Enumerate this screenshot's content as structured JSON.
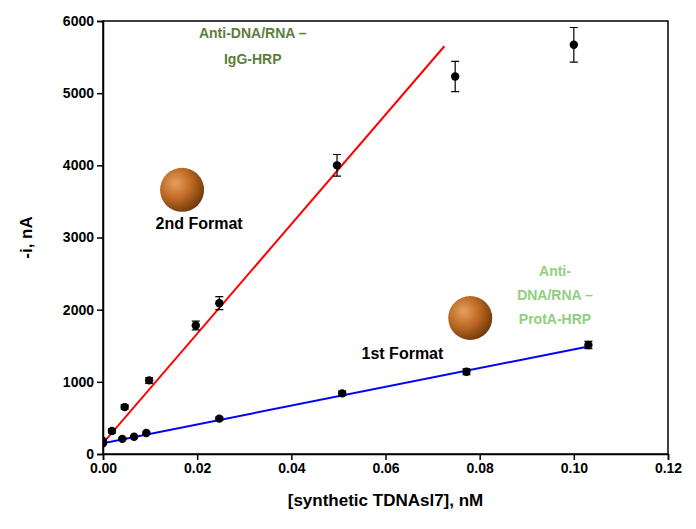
{
  "chart_data": {
    "type": "scatter",
    "x_label": "[synthetic TDNAsl7], nM",
    "y_label": "-i, nA",
    "xlim": [
      0,
      0.12
    ],
    "ylim": [
      0,
      6000
    ],
    "xticks": [
      {
        "value": 0,
        "label": "0.00"
      },
      {
        "value": 0.02,
        "label": "0.02"
      },
      {
        "value": 0.04,
        "label": "0.04"
      },
      {
        "value": 0.06,
        "label": "0.06"
      },
      {
        "value": 0.08,
        "label": "0.08"
      },
      {
        "value": 0.1,
        "label": "0.10"
      },
      {
        "value": 0.12,
        "label": "0.12"
      }
    ],
    "yticks": [
      0,
      1000,
      2000,
      3000,
      4000,
      5000,
      6000
    ],
    "grid": false,
    "series": [
      {
        "type": "scatter",
        "color": "#000000",
        "marker": "circle",
        "x": [
          0,
          0.0019,
          0.0046,
          0.0098,
          0.0197,
          0.0247,
          0.0497,
          0.0748,
          0.1
        ],
        "values": [
          180,
          320,
          650,
          1020,
          1780,
          2090,
          4000,
          5230,
          5670
        ],
        "errors": [
          20,
          30,
          30,
          40,
          60,
          90,
          150,
          210,
          240
        ]
      },
      {
        "type": "line",
        "color": "#ff0000",
        "line_style": "solid",
        "x": [
          0,
          0.0725
        ],
        "values": [
          150,
          5650
        ]
      },
      {
        "type": "scatter",
        "color": "#000000",
        "marker": "circle",
        "x": [
          0,
          0.0041,
          0.0066,
          0.0092,
          0.0247,
          0.0508,
          0.0772,
          0.1031
        ],
        "values": [
          150,
          210,
          240,
          290,
          490,
          840,
          1140,
          1510
        ],
        "errors": [
          10,
          10,
          10,
          15,
          20,
          30,
          40,
          50
        ]
      },
      {
        "type": "line",
        "color": "#0000ff",
        "line_style": "solid",
        "x": [
          0,
          0.1031
        ],
        "values": [
          150,
          1490
        ]
      }
    ],
    "annotations": [
      {
        "lines": [
          "2nd Format"
        ],
        "color": "#000000"
      },
      {
        "lines": [
          "Anti-DNA/RNA –",
          "IgG-HRP"
        ],
        "color": "#5b7f3a"
      },
      {
        "lines": [
          "1st Format"
        ],
        "color": "#000000"
      },
      {
        "lines": [
          "Anti-",
          "DNA/RNA –",
          "ProtA-HRP"
        ],
        "color": "#8fcf7e"
      }
    ]
  }
}
